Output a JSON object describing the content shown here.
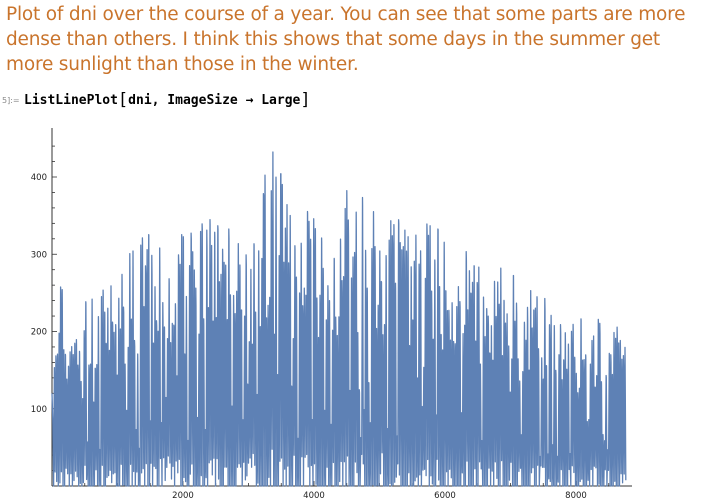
{
  "notebook": {
    "text_cell": "Plot of dni over the course of a year. You can see that some parts are more dense than others. I think this shows that some days in the summer get more sunlight than those in the winter.",
    "input_label": "5]:=",
    "input_code": {
      "function": "ListLinePlot",
      "open_bracket": "[",
      "args": "dni, ImageSize",
      "arrow": "→",
      "option_value": "Large",
      "close_bracket": "]"
    }
  },
  "chart_data": {
    "type": "line",
    "series_color": "#5e81b5",
    "x_tick_labels": [
      "2000",
      "4000",
      "6000",
      "8000"
    ],
    "y_tick_labels": [
      "100",
      "200",
      "300",
      "400"
    ],
    "xlim": [
      0,
      8760
    ],
    "ylim": [
      0,
      450
    ],
    "envelope": [
      {
        "x": 100,
        "y": 270
      },
      {
        "x": 400,
        "y": 250
      },
      {
        "x": 800,
        "y": 260
      },
      {
        "x": 1100,
        "y": 290
      },
      {
        "x": 1400,
        "y": 330
      },
      {
        "x": 1700,
        "y": 340
      },
      {
        "x": 2100,
        "y": 330
      },
      {
        "x": 2400,
        "y": 370
      },
      {
        "x": 2800,
        "y": 350
      },
      {
        "x": 3100,
        "y": 360
      },
      {
        "x": 3380,
        "y": 445
      },
      {
        "x": 3700,
        "y": 370
      },
      {
        "x": 4100,
        "y": 355
      },
      {
        "x": 4500,
        "y": 390
      },
      {
        "x": 4900,
        "y": 380
      },
      {
        "x": 5300,
        "y": 360
      },
      {
        "x": 5700,
        "y": 350
      },
      {
        "x": 6200,
        "y": 330
      },
      {
        "x": 6700,
        "y": 300
      },
      {
        "x": 7200,
        "y": 260
      },
      {
        "x": 7700,
        "y": 240
      },
      {
        "x": 8100,
        "y": 220
      },
      {
        "x": 8500,
        "y": 215
      },
      {
        "x": 8760,
        "y": 200
      }
    ]
  }
}
